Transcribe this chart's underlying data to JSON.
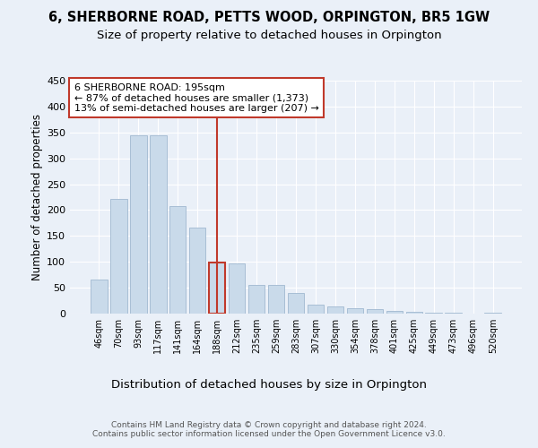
{
  "title": "6, SHERBORNE ROAD, PETTS WOOD, ORPINGTON, BR5 1GW",
  "subtitle": "Size of property relative to detached houses in Orpington",
  "xlabel": "Distribution of detached houses by size in Orpington",
  "ylabel": "Number of detached properties",
  "bar_labels": [
    "46sqm",
    "70sqm",
    "93sqm",
    "117sqm",
    "141sqm",
    "164sqm",
    "188sqm",
    "212sqm",
    "235sqm",
    "259sqm",
    "283sqm",
    "307sqm",
    "330sqm",
    "354sqm",
    "378sqm",
    "401sqm",
    "425sqm",
    "449sqm",
    "473sqm",
    "496sqm",
    "520sqm"
  ],
  "bar_values": [
    65,
    222,
    345,
    345,
    207,
    167,
    98,
    97,
    55,
    55,
    40,
    18,
    13,
    10,
    8,
    5,
    4,
    2,
    1,
    0,
    1
  ],
  "bar_color": "#c9daea",
  "bar_edge_color": "#a0b8d0",
  "highlight_bar_index": 6,
  "vline_color": "#c0392b",
  "annotation_text": "6 SHERBORNE ROAD: 195sqm\n← 87% of detached houses are smaller (1,373)\n13% of semi-detached houses are larger (207) →",
  "annotation_box_color": "#ffffff",
  "annotation_box_edge_color": "#c0392b",
  "ylim": [
    0,
    450
  ],
  "yticks": [
    0,
    50,
    100,
    150,
    200,
    250,
    300,
    350,
    400,
    450
  ],
  "background_color": "#eaf0f8",
  "plot_background_color": "#eaf0f8",
  "footer_text": "Contains HM Land Registry data © Crown copyright and database right 2024.\nContains public sector information licensed under the Open Government Licence v3.0.",
  "title_fontsize": 10.5,
  "subtitle_fontsize": 9.5,
  "xlabel_fontsize": 9.5,
  "ylabel_fontsize": 8.5,
  "annotation_fontsize": 8,
  "footer_fontsize": 6.5
}
